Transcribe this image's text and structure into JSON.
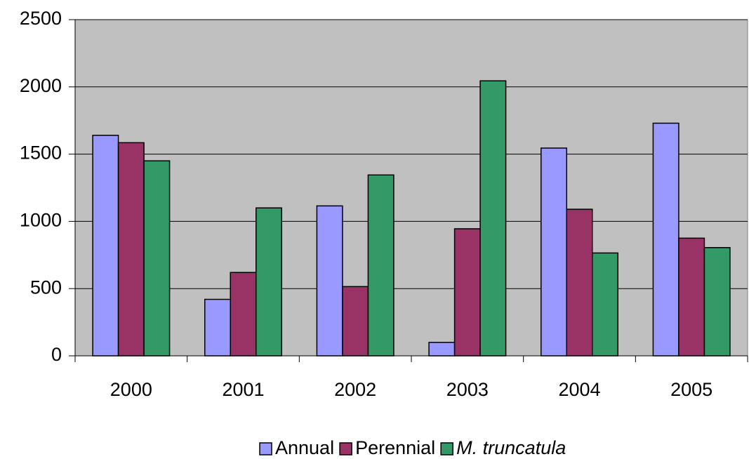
{
  "chart_data": {
    "type": "bar",
    "categories": [
      "2000",
      "2001",
      "2002",
      "2003",
      "2004",
      "2005"
    ],
    "series": [
      {
        "name": "Annual",
        "color": "#9999ff",
        "values": [
          1640,
          420,
          1115,
          100,
          1545,
          1730
        ]
      },
      {
        "name": "Perennial",
        "color": "#993366",
        "values": [
          1585,
          620,
          515,
          945,
          1090,
          875
        ]
      },
      {
        "name": "M. truncatula",
        "color": "#339966",
        "values": [
          1450,
          1100,
          1345,
          2045,
          765,
          805
        ]
      }
    ],
    "ylim": [
      0,
      2500
    ],
    "yticks": [
      0,
      500,
      1000,
      1500,
      2000,
      2500
    ],
    "grid": true,
    "legend": "bottom"
  }
}
